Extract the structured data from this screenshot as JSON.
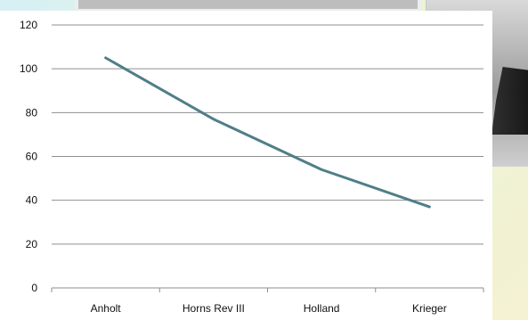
{
  "chart_data": {
    "type": "line",
    "categories": [
      "Anholt",
      "Horns Rev III",
      "Holland",
      "Krieger"
    ],
    "series": [
      {
        "values": [
          105,
          77,
          54,
          37
        ]
      }
    ],
    "ylim": [
      0,
      120
    ],
    "yticks": [
      "0",
      "20",
      "40",
      "60",
      "80",
      "100",
      "120"
    ],
    "grid": true,
    "legend": "none"
  },
  "colors": {
    "series": "#4f7f88",
    "grid": "#8f8f8f",
    "background": "#ffffff"
  }
}
